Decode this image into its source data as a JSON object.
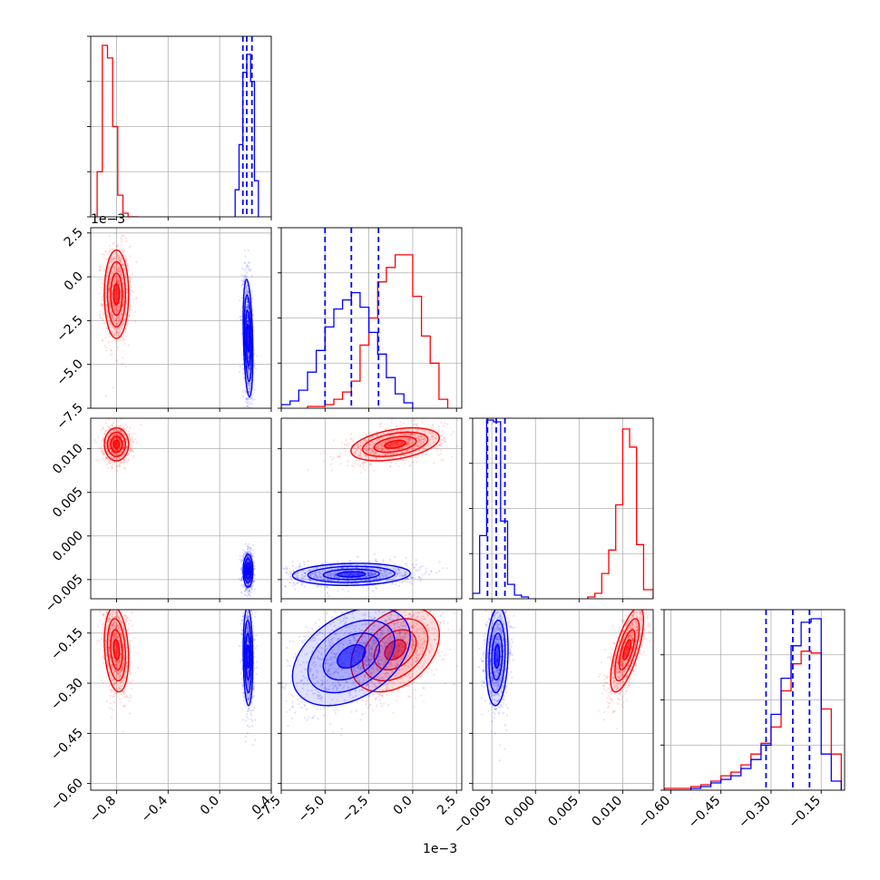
{
  "colors": {
    "red_series": "#ff0000",
    "blue_series": "#0000ff",
    "grid": "#b0b0b0"
  },
  "chart_data": {
    "type": "corner",
    "grid": true,
    "parameters": [
      {
        "range": [
          -1.0,
          0.4
        ],
        "ticks": [
          -0.8,
          -0.4,
          0.0,
          0.4
        ],
        "tick_labels": [
          "−0.8",
          "−0.4",
          "0.0",
          "0.4"
        ],
        "offset_text": ""
      },
      {
        "range": [
          -7.5,
          2.8
        ],
        "ticks": [
          -7.5,
          -5.0,
          -2.5,
          0.0,
          2.5
        ],
        "tick_labels": [
          "−7.5",
          "−5.0",
          "−2.5",
          "0.0",
          "2.5"
        ],
        "offset_text": "1e−3"
      },
      {
        "range": [
          -0.0072,
          0.0135
        ],
        "ticks": [
          -0.005,
          0.0,
          0.005,
          0.01
        ],
        "tick_labels": [
          "−0.005",
          "0.000",
          "0.005",
          "0.010"
        ],
        "offset_text": ""
      },
      {
        "range": [
          -0.62,
          -0.08
        ],
        "ticks": [
          -0.6,
          -0.45,
          -0.3,
          -0.15
        ],
        "tick_labels": [
          "−0.60",
          "−0.45",
          "−0.30",
          "−0.15"
        ],
        "offset_text": ""
      }
    ],
    "series": [
      {
        "name": "",
        "color": "#ff0000",
        "points": [
          {
            "x": -0.8,
            "y": -1.0,
            "sx": 0.045,
            "sy": 1.2
          },
          {
            "x": -0.8,
            "y": 0.0105,
            "sx": 0.045,
            "sy": 0.0009
          },
          {
            "x": -0.8,
            "y": -0.19,
            "sx": 0.045,
            "sy": 0.06
          }
        ],
        "panels": [
          {
            "row": 1,
            "col": 0,
            "cx": -0.8,
            "cy": -1.0,
            "sx": 0.045,
            "sy": 1.2,
            "rho": 0.0
          },
          {
            "row": 2,
            "col": 0,
            "cx": -0.8,
            "cy": 0.0105,
            "sx": 0.045,
            "sy": 0.0009,
            "rho": 0.0
          },
          {
            "row": 2,
            "col": 1,
            "cx": -1.0,
            "cy": 0.0105,
            "sx": 1.2,
            "sy": 0.0009,
            "rho": 0.4
          },
          {
            "row": 3,
            "col": 0,
            "cx": -0.8,
            "cy": -0.2,
            "sx": 0.045,
            "sy": 0.06,
            "rho": -0.2
          },
          {
            "row": 3,
            "col": 1,
            "cx": -1.0,
            "cy": -0.2,
            "sx": 1.2,
            "sy": 0.06,
            "rho": 0.35
          },
          {
            "row": 3,
            "col": 2,
            "cx": 0.0105,
            "cy": -0.2,
            "sx": 0.0009,
            "sy": 0.06,
            "rho": 0.7
          }
        ],
        "histograms": [
          {
            "param": 0,
            "edges": [
              -0.95,
              -0.91,
              -0.87,
              -0.83,
              -0.79,
              -0.75,
              -0.71,
              -0.67,
              -0.63
            ],
            "counts": [
              0.25,
              0.95,
              0.88,
              0.5,
              0.12,
              0.02,
              0.0,
              0.0
            ]
          },
          {
            "param": 1,
            "edges": [
              -6.0,
              -5.0,
              -4.5,
              -4.0,
              -3.5,
              -3.0,
              -2.5,
              -2.0,
              -1.5,
              -1.0,
              -0.5,
              0.0,
              0.5,
              1.0,
              1.5,
              2.0
            ],
            "counts": [
              0.01,
              0.02,
              0.05,
              0.09,
              0.15,
              0.35,
              0.5,
              0.7,
              0.78,
              0.85,
              0.85,
              0.62,
              0.4,
              0.25,
              0.05
            ]
          },
          {
            "param": 2,
            "edges": [
              0.006,
              0.0068,
              0.0076,
              0.0084,
              0.0092,
              0.01,
              0.0108,
              0.0116,
              0.0124,
              0.0135
            ],
            "counts": [
              0.01,
              0.03,
              0.14,
              0.27,
              0.52,
              0.94,
              0.84,
              0.3,
              0.05
            ]
          },
          {
            "param": 3,
            "edges": [
              -0.62,
              -0.54,
              -0.51,
              -0.48,
              -0.45,
              -0.42,
              -0.39,
              -0.36,
              -0.33,
              -0.3,
              -0.27,
              -0.24,
              -0.21,
              -0.18,
              -0.15,
              -0.12,
              -0.09
            ],
            "counts": [
              0.01,
              0.02,
              0.03,
              0.05,
              0.08,
              0.1,
              0.14,
              0.2,
              0.26,
              0.35,
              0.55,
              0.7,
              0.77,
              0.76,
              0.45,
              0.2
            ]
          }
        ]
      },
      {
        "name": "",
        "color": "#0000ff",
        "panels": [
          {
            "row": 1,
            "col": 0,
            "cx": 0.22,
            "cy": -3.5,
            "sx": 0.018,
            "sy": 1.6,
            "rho": -0.3
          },
          {
            "row": 2,
            "col": 0,
            "cx": 0.22,
            "cy": -0.004,
            "sx": 0.018,
            "sy": 0.0009,
            "rho": 0.0
          },
          {
            "row": 2,
            "col": 1,
            "cx": -3.5,
            "cy": -0.0044,
            "sx": 1.6,
            "sy": 0.0006,
            "rho": 0.1
          },
          {
            "row": 3,
            "col": 0,
            "cx": 0.22,
            "cy": -0.22,
            "sx": 0.018,
            "sy": 0.07,
            "rho": -0.1
          },
          {
            "row": 3,
            "col": 1,
            "cx": -3.5,
            "cy": -0.22,
            "sx": 1.6,
            "sy": 0.07,
            "rho": 0.4
          },
          {
            "row": 3,
            "col": 2,
            "cx": -0.0044,
            "cy": -0.22,
            "sx": 0.0006,
            "sy": 0.07,
            "rho": 0.15
          }
        ],
        "histograms": [
          {
            "param": 0,
            "edges": [
              0.12,
              0.15,
              0.18,
              0.21,
              0.24,
              0.27,
              0.3
            ],
            "counts": [
              0.15,
              0.4,
              0.8,
              0.9,
              0.75,
              0.2
            ]
          },
          {
            "param": 1,
            "edges": [
              -7.5,
              -7.0,
              -6.5,
              -6.0,
              -5.5,
              -5.0,
              -4.5,
              -4.0,
              -3.5,
              -3.0,
              -2.5,
              -2.0,
              -1.5,
              -1.0,
              -0.5,
              0.0
            ],
            "counts": [
              0.02,
              0.04,
              0.1,
              0.2,
              0.32,
              0.45,
              0.55,
              0.6,
              0.64,
              0.56,
              0.42,
              0.3,
              0.17,
              0.08,
              0.03
            ]
          },
          {
            "param": 2,
            "edges": [
              -0.0072,
              -0.0064,
              -0.0056,
              -0.0048,
              -0.004,
              -0.0032,
              -0.0024,
              -0.0016,
              -0.0008
            ],
            "counts": [
              0.03,
              0.35,
              0.99,
              0.98,
              0.43,
              0.08,
              0.02,
              0.01
            ]
          },
          {
            "param": 3,
            "edges": [
              -0.62,
              -0.54,
              -0.51,
              -0.48,
              -0.45,
              -0.42,
              -0.39,
              -0.36,
              -0.33,
              -0.3,
              -0.27,
              -0.24,
              -0.21,
              -0.18,
              -0.15,
              -0.12,
              -0.09
            ],
            "counts": [
              0.0,
              0.01,
              0.02,
              0.04,
              0.06,
              0.08,
              0.12,
              0.17,
              0.25,
              0.42,
              0.62,
              0.8,
              0.93,
              0.95,
              0.2,
              0.05
            ]
          }
        ],
        "quantile_lines": [
          {
            "param": 0,
            "values": [
              0.18,
              0.21,
              0.25
            ]
          },
          {
            "param": 1,
            "values": [
              -5.0,
              -3.5,
              -1.95
            ]
          },
          {
            "param": 2,
            "values": [
              -0.0055,
              -0.0045,
              -0.0035
            ]
          },
          {
            "param": 3,
            "values": [
              -0.315,
              -0.235,
              -0.185
            ]
          }
        ]
      }
    ]
  }
}
